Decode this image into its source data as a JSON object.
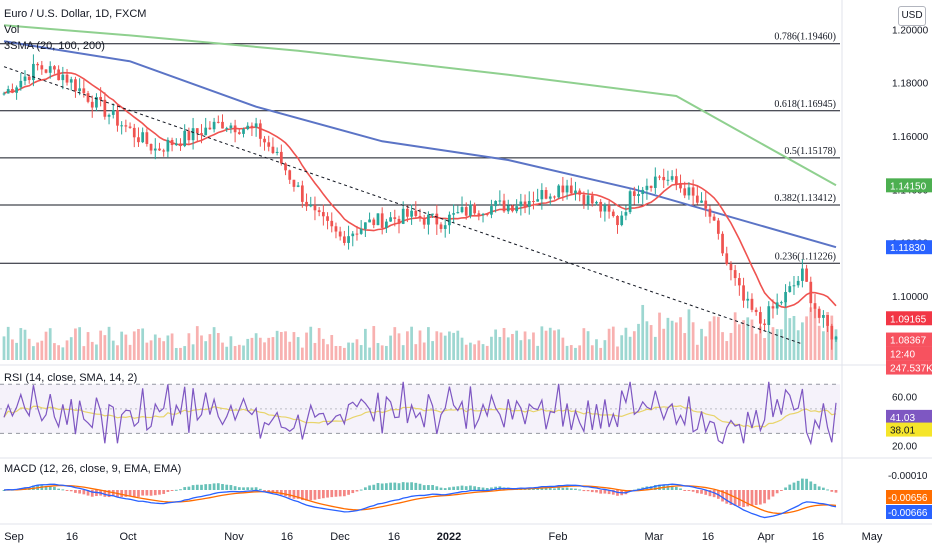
{
  "header": {
    "symbol": "Euro / U.S. Dollar, 1D, FXCM",
    "vol": "Vol",
    "sma_legend": "3SMA (20, 100, 200)",
    "currency_button": "USD"
  },
  "colors": {
    "up": "#26a69a",
    "down": "#ef5350",
    "sma20": "#ef5350",
    "sma100": "#5b74c6",
    "sma200": "#8fd08f",
    "rsi": "#7e57c2",
    "rsi_ma": "#e8d46a",
    "macd": "#2962ff",
    "macd_signal": "#ff6d00",
    "fib": "#131722"
  },
  "price_axis": {
    "ticks": [
      "1.20000",
      "1.18000",
      "1.16000",
      "1.14000",
      "1.12000",
      "1.10000"
    ],
    "labels": [
      {
        "text": "1.14150",
        "color": "#4caf50"
      },
      {
        "text": "1.11830",
        "color": "#2962ff"
      },
      {
        "text": "1.09165",
        "color": "#f23645"
      },
      {
        "text": "1.08367",
        "color": "#f7525f"
      },
      {
        "text": "12:40",
        "color": "#f7525f"
      },
      {
        "text": "247.537K",
        "color": "#f7525f"
      }
    ]
  },
  "rsi_axis": {
    "ticks": [
      "60.00",
      "20.00"
    ],
    "labels": [
      {
        "text": "41.03",
        "color": "#7e57c2"
      },
      {
        "text": "38.01",
        "color": "#f5e52a"
      }
    ]
  },
  "macd_axis": {
    "labels": [
      {
        "text": "-0.00010",
        "color": "#ffffff"
      },
      {
        "text": "-0.00656",
        "color": "#ff6d00"
      },
      {
        "text": "-0.00666",
        "color": "#2962ff"
      }
    ]
  },
  "indicators": {
    "rsi_legend": "RSI (14, close, SMA, 14, 2)",
    "macd_legend": "MACD (12, 26, close, 9, EMA, EMA)"
  },
  "time_axis": {
    "labels": [
      "Sep",
      "16",
      "Oct",
      "Nov",
      "16",
      "Dec",
      "16",
      "2022",
      "Feb",
      "Mar",
      "16",
      "Apr",
      "16",
      "May"
    ]
  },
  "chart_data": {
    "type": "candlestick",
    "title": "Euro / U.S. Dollar, 1D, FXCM",
    "ylim": [
      1.076,
      1.208
    ],
    "fib_levels": [
      {
        "label": "0.786(1.19460)",
        "value": 1.1946
      },
      {
        "label": "0.618(1.16945)",
        "value": 1.16945
      },
      {
        "label": "0.5(1.15178)",
        "value": 1.15178
      },
      {
        "label": "0.382(1.13412)",
        "value": 1.13412
      },
      {
        "label": "0.236(1.11226)",
        "value": 1.11226
      }
    ],
    "trendline": {
      "from": {
        "date": "2021-09-01",
        "price": 1.186
      },
      "to": {
        "date": "2022-04-22",
        "price": 1.082
      }
    },
    "sma_200": [
      [
        0,
        1.2015
      ],
      [
        28,
        1.198
      ],
      [
        70,
        1.192
      ],
      [
        120,
        1.183
      ],
      [
        160,
        1.175
      ],
      [
        198,
        1.1415
      ]
    ],
    "sma_100": [
      [
        0,
        1.1955
      ],
      [
        30,
        1.188
      ],
      [
        60,
        1.171
      ],
      [
        90,
        1.158
      ],
      [
        120,
        1.151
      ],
      [
        150,
        1.14
      ],
      [
        198,
        1.1183
      ]
    ],
    "sma_20_last": 1.09165,
    "last_close": 1.08367,
    "last_volume": "247.537K",
    "rsi": {
      "last": 41.03,
      "ma_last": 38.01
    },
    "macd": {
      "histogram_last": -0.0001,
      "signal_last": -0.00656,
      "macd_last": -0.00666
    }
  }
}
